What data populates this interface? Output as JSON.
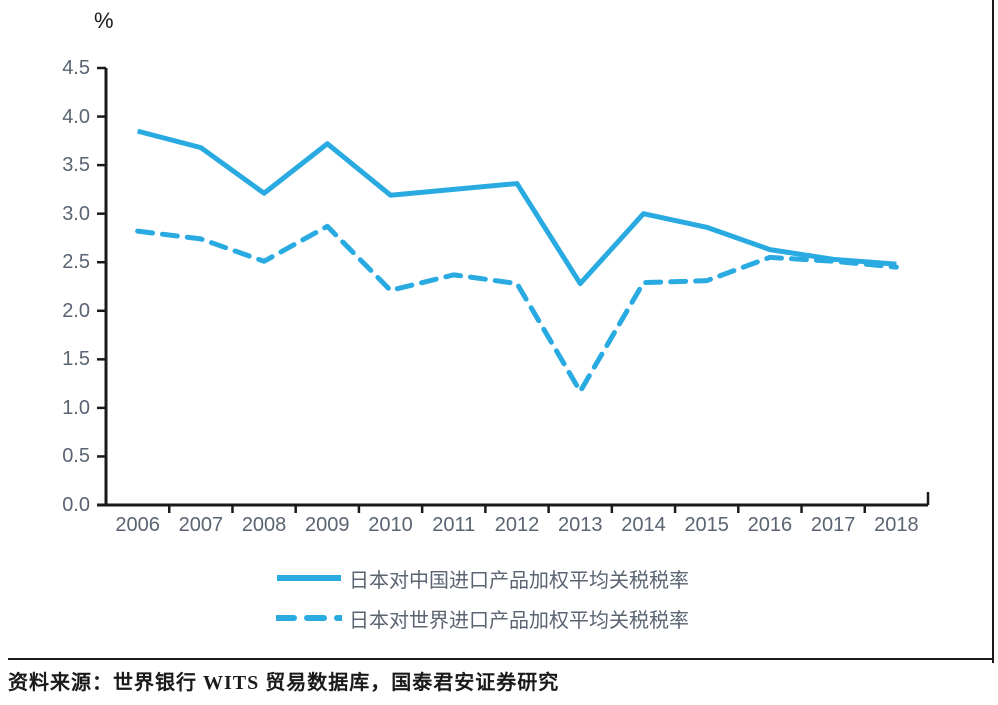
{
  "chart": {
    "unit_label": "%",
    "y_ticks": [
      "4.5",
      "4.0",
      "3.5",
      "3.0",
      "2.5",
      "2.0",
      "1.5",
      "1.0",
      "0.5",
      "0.0"
    ],
    "colors": {
      "line": "#29ABE2",
      "axis": "#1A1A1A",
      "tick_label": "#5A6472"
    }
  },
  "chart_data": {
    "type": "line",
    "categories": [
      "2006",
      "2007",
      "2008",
      "2009",
      "2010",
      "2011",
      "2012",
      "2013",
      "2014",
      "2015",
      "2016",
      "2017",
      "2018"
    ],
    "series": [
      {
        "name": "日本对中国进口产品加权平均关税税率",
        "style": "solid",
        "values": [
          3.85,
          3.68,
          3.21,
          3.72,
          3.19,
          3.25,
          3.31,
          2.28,
          3.0,
          2.86,
          2.63,
          2.53,
          2.48
        ]
      },
      {
        "name": "日本对世界进口产品加权平均关税税率",
        "style": "dashed",
        "values": [
          2.82,
          2.74,
          2.51,
          2.87,
          2.21,
          2.37,
          2.28,
          1.17,
          2.29,
          2.31,
          2.55,
          2.51,
          2.45
        ]
      }
    ],
    "title": "",
    "xlabel": "",
    "ylabel": "%",
    "ylim": [
      0,
      4.5
    ],
    "y_step": 0.5,
    "grid": false,
    "legend_position": "bottom"
  },
  "footer": {
    "source_text": "资料来源：世界银行 WITS 贸易数据库，国泰君安证券研究"
  }
}
